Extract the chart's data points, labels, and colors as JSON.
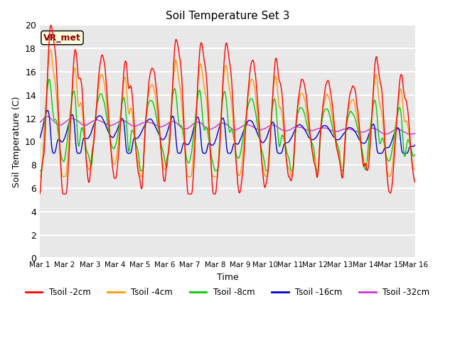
{
  "title": "Soil Temperature Set 3",
  "xlabel": "Time",
  "ylabel": "Soil Temperature (C)",
  "ylim": [
    0,
    20
  ],
  "yticks": [
    0,
    2,
    4,
    6,
    8,
    10,
    12,
    14,
    16,
    18,
    20
  ],
  "xtick_labels": [
    "Mar 1",
    "Mar 2",
    "Mar 3",
    "Mar 4",
    "Mar 5",
    "Mar 6",
    "Mar 7",
    "Mar 8",
    "Mar 9",
    "Mar 10",
    "Mar 11",
    "Mar 12",
    "Mar 13",
    "Mar 14",
    "Mar 15",
    "Mar 16"
  ],
  "annotation_text": "VR_met",
  "bg_color": "#e8e8e8",
  "grid_color": "white",
  "line_colors": {
    "2cm": "#ff0000",
    "4cm": "#ff9900",
    "8cm": "#00cc00",
    "16cm": "#0000cc",
    "32cm": "#cc33cc"
  },
  "legend_labels": [
    "Tsoil -2cm",
    "Tsoil -4cm",
    "Tsoil -8cm",
    "Tsoil -16cm",
    "Tsoil -32cm"
  ],
  "figsize": [
    6.4,
    4.8
  ],
  "dpi": 100
}
